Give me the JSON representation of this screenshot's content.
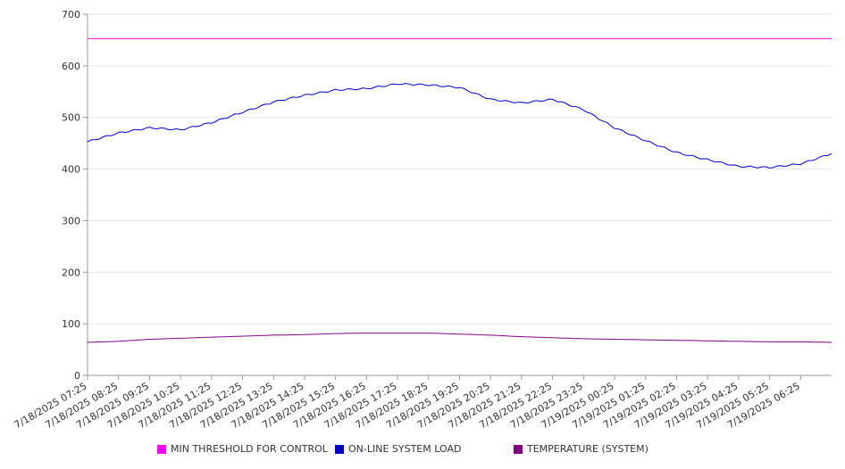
{
  "chart_data": {
    "type": "line",
    "title": "",
    "xlabel": "",
    "ylabel": "",
    "ylim": [
      0,
      700
    ],
    "yticks": [
      0,
      100,
      200,
      300,
      400,
      500,
      600,
      700
    ],
    "xticks": [
      "7/18/2025 07:25",
      "7/18/2025 08:25",
      "7/18/2025 09:25",
      "7/18/2025 10:25",
      "7/18/2025 11:25",
      "7/18/2025 12:25",
      "7/18/2025 13:25",
      "7/18/2025 14:25",
      "7/18/2025 15:25",
      "7/18/2025 16:25",
      "7/18/2025 17:25",
      "7/18/2025 18:25",
      "7/18/2025 19:25",
      "7/18/2025 20:25",
      "7/18/2025 21:25",
      "7/18/2025 22:25",
      "7/18/2025 23:25",
      "7/19/2025 00:25",
      "7/19/2025 01:25",
      "7/19/2025 02:25",
      "7/19/2025 03:25",
      "7/19/2025 04:25",
      "7/19/2025 05:25",
      "7/19/2025 06:25"
    ],
    "grid": true,
    "legend_position": "bottom",
    "series": [
      {
        "name": "MIN THRESHOLD FOR CONTROL",
        "color": "#ff00ff",
        "values": [
          653,
          653,
          653,
          653,
          653,
          653,
          653,
          653,
          653,
          653,
          653,
          653,
          653,
          653,
          653,
          653,
          653,
          653,
          653,
          653,
          653,
          653,
          653,
          653,
          653
        ]
      },
      {
        "name": "ON-LINE SYSTEM LOAD",
        "color": "#0000cc",
        "values": [
          453,
          470,
          480,
          476,
          490,
          510,
          530,
          543,
          553,
          556,
          565,
          563,
          558,
          535,
          528,
          535,
          515,
          480,
          455,
          432,
          418,
          405,
          403,
          410,
          430
        ]
      },
      {
        "name": "TEMPERATURE (SYSTEM)",
        "color": "#800080",
        "values": [
          64,
          66,
          70,
          72,
          74,
          76,
          78,
          79,
          81,
          82,
          82,
          82,
          80,
          78,
          75,
          73,
          71,
          70,
          69,
          68,
          67,
          66,
          65,
          65,
          64
        ]
      }
    ]
  }
}
